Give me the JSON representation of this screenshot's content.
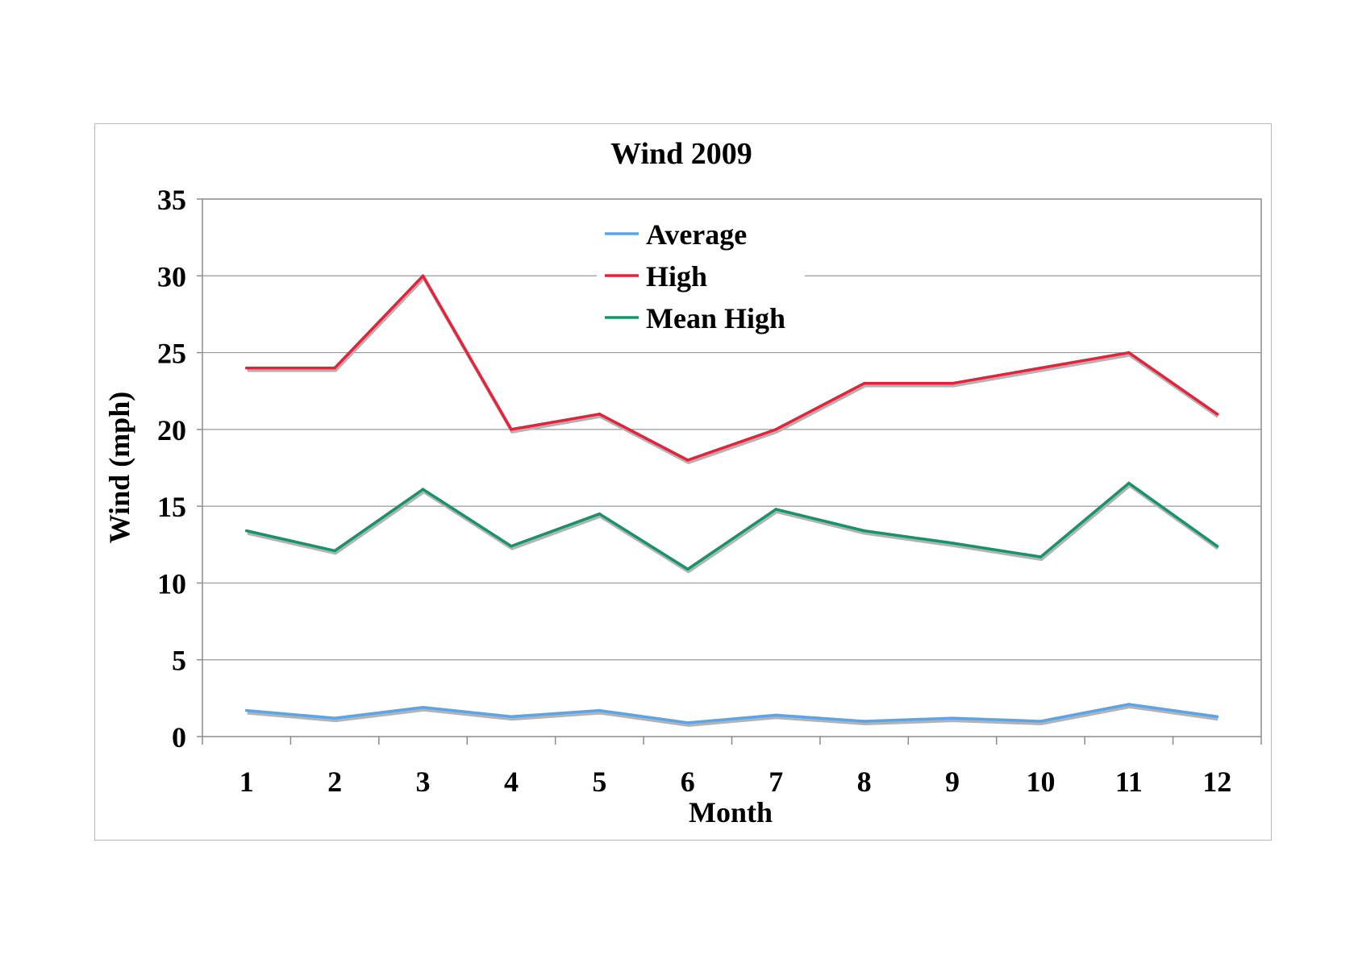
{
  "chart_data": {
    "type": "line",
    "title": "Wind 2009",
    "xlabel": "Month",
    "ylabel": "Wind (mph)",
    "categories": [
      "1",
      "2",
      "3",
      "4",
      "5",
      "6",
      "7",
      "8",
      "9",
      "10",
      "11",
      "12"
    ],
    "ylim": [
      0,
      35
    ],
    "yticks": [
      "0",
      "5",
      "10",
      "15",
      "20",
      "25",
      "30",
      "35"
    ],
    "grid": true,
    "legend_position": "top-center",
    "series": [
      {
        "name": "Average",
        "color": "#5aa5ea",
        "values": [
          1.7,
          1.2,
          1.9,
          1.3,
          1.7,
          0.9,
          1.4,
          1.0,
          1.2,
          1.0,
          2.1,
          1.3
        ]
      },
      {
        "name": "High",
        "color": "#e8203a",
        "values": [
          24,
          24,
          30,
          20,
          21,
          18,
          20,
          23,
          23,
          24,
          25,
          21
        ]
      },
      {
        "name": "Mean High",
        "color": "#16936a",
        "values": [
          13.4,
          12.1,
          16.1,
          12.4,
          14.5,
          10.9,
          14.8,
          13.4,
          12.6,
          11.7,
          16.5,
          12.4
        ]
      }
    ]
  }
}
